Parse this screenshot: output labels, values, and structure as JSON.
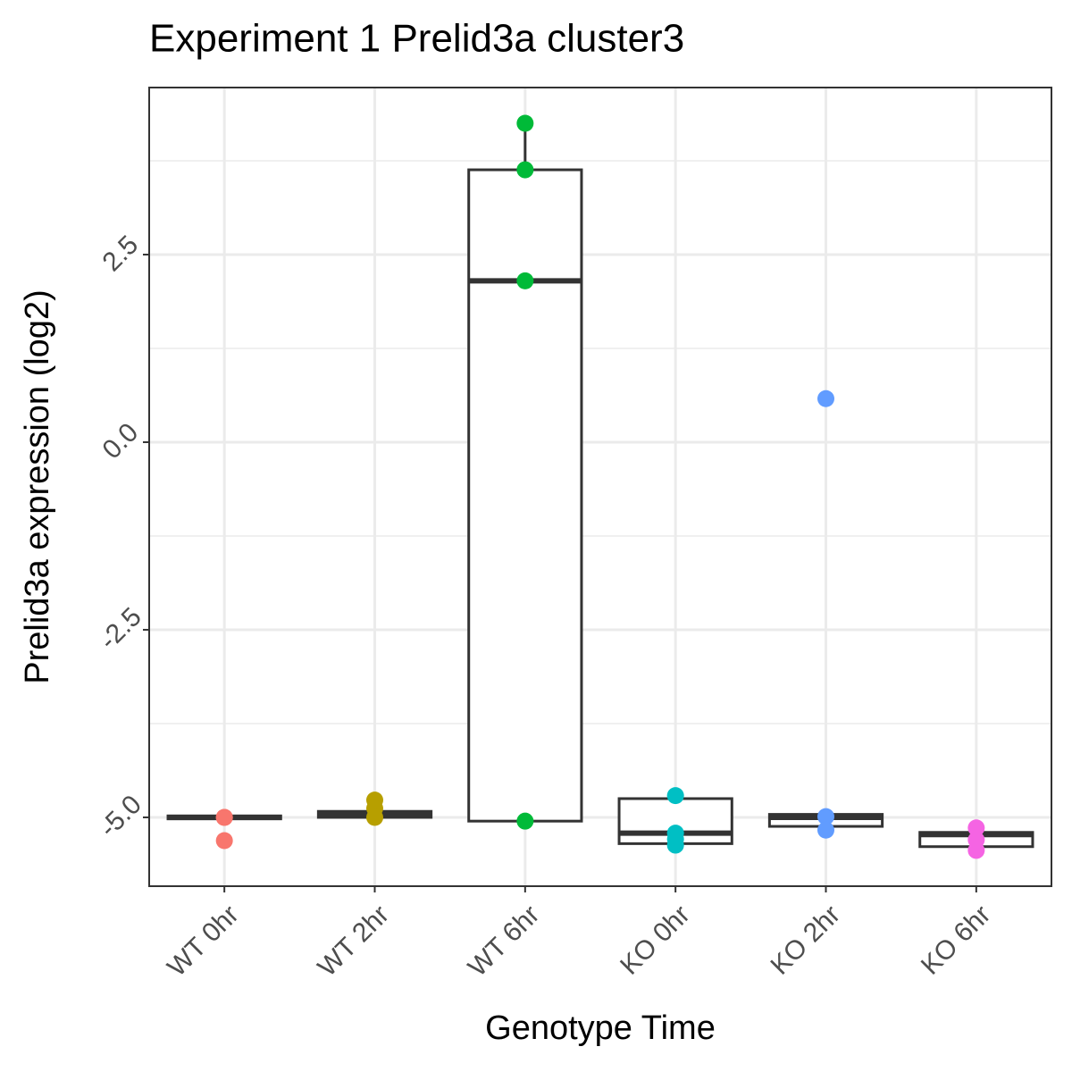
{
  "chart_data": {
    "type": "box",
    "title": "Experiment 1 Prelid3a cluster3",
    "x_label": "Genotype Time",
    "y_label": "Prelid3a expression (log2)",
    "categories": [
      "WT 0hr",
      "WT 2hr",
      "WT 6hr",
      "KO 0hr",
      "KO 2hr",
      "KO 6hr"
    ],
    "colors": [
      "#F8766D",
      "#B79F00",
      "#00BA38",
      "#00BFC4",
      "#619CFF",
      "#F564E3"
    ],
    "boxes": [
      {
        "whisker_low": -5.02,
        "q1": -5.02,
        "median": -5.0,
        "q3": -4.98,
        "whisker_high": -4.98,
        "points": [
          -5.0,
          -5.0,
          -5.31
        ]
      },
      {
        "whisker_low": -5.0,
        "q1": -5.0,
        "median": -4.96,
        "q3": -4.92,
        "whisker_high": -4.92,
        "points": [
          -4.77,
          -4.88,
          -5.0
        ]
      },
      {
        "whisker_low": -5.05,
        "q1": -5.05,
        "median": 2.15,
        "q3": 3.63,
        "whisker_high": 4.25,
        "points": [
          4.25,
          3.63,
          2.15,
          -5.05
        ]
      },
      {
        "whisker_low": -5.35,
        "q1": -5.35,
        "median": -5.21,
        "q3": -4.75,
        "whisker_high": -4.71,
        "points": [
          -4.71,
          -5.21,
          -5.29,
          -5.37
        ]
      },
      {
        "whisker_low": -5.12,
        "q1": -5.12,
        "median": -5.0,
        "q3": -4.96,
        "whisker_high": -4.96,
        "points": [
          0.58,
          -4.99,
          -5.17
        ]
      },
      {
        "whisker_low": -5.39,
        "q1": -5.39,
        "median": -5.23,
        "q3": -5.2,
        "whisker_high": -5.14,
        "points": [
          -5.14,
          -5.3,
          -5.44
        ]
      }
    ],
    "ylim": [
      -5.917,
      4.726
    ],
    "yticks": [
      {
        "value": -5.0,
        "label": "-5.0"
      },
      -2.5,
      {
        "value": 0.0,
        "label": "0.0"
      },
      2.5
    ],
    "grid": true,
    "minor_grid": true
  }
}
